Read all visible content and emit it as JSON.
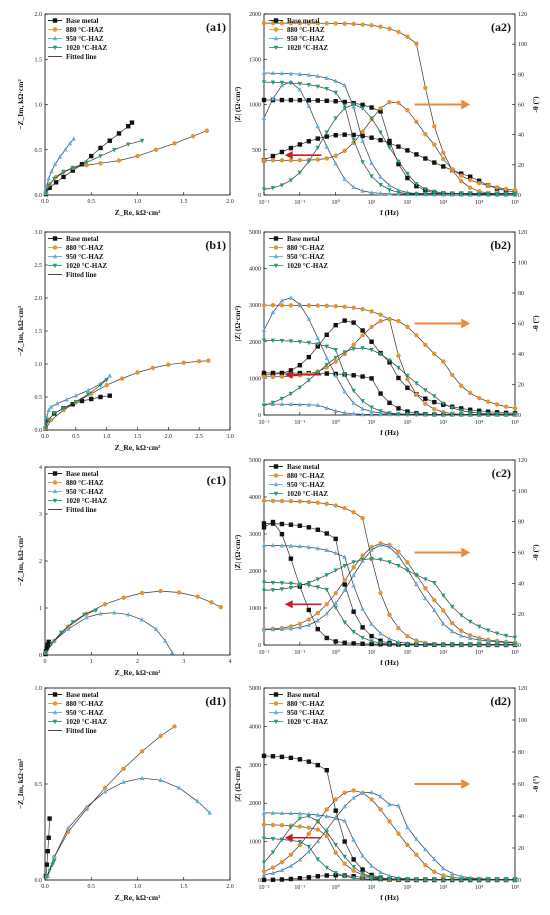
{
  "colors": {
    "Base metal": "#111111",
    "880 °C-HAZ": "#e8922c",
    "950 °C-HAZ": "#5ab0e0",
    "1020 °C-HAZ": "#18a07a",
    "fit": "#333333",
    "arrow_right": "#f0883a",
    "arrow_left": "#c81e1e"
  },
  "legend_labels": [
    "Base metal",
    "880 °C-HAZ",
    "950 °C-HAZ",
    "1020 °C-HAZ",
    "Fitted line"
  ],
  "chart_data": [
    {
      "id": "a1",
      "panel_label": "(a1)",
      "type": "scatter",
      "xlabel": "Z_Re, kΩ·cm²",
      "ylabel": "−Z_Im, kΩ·cm²",
      "xlim": [
        0,
        2.0
      ],
      "ylim": [
        0,
        2.0
      ],
      "xticks": [
        "0.0",
        "0.5",
        "1.0",
        "1.5",
        "2.0"
      ],
      "yticks": [
        "0.0",
        "0.5",
        "1.0",
        "1.5",
        "2.0"
      ],
      "legend": [
        "Base metal",
        "880 °C-HAZ",
        "950 °C-HAZ",
        "1020 °C-HAZ",
        "Fitted line"
      ],
      "series": [
        {
          "name": "Base metal",
          "x": [
            0.01,
            0.05,
            0.12,
            0.2,
            0.3,
            0.4,
            0.5,
            0.6,
            0.7,
            0.8,
            0.9,
            0.94
          ],
          "y": [
            0.01,
            0.08,
            0.14,
            0.2,
            0.27,
            0.34,
            0.43,
            0.52,
            0.6,
            0.68,
            0.76,
            0.8
          ]
        },
        {
          "name": "880 °C-HAZ",
          "x": [
            0.01,
            0.05,
            0.12,
            0.2,
            0.3,
            0.45,
            0.6,
            0.8,
            1.0,
            1.2,
            1.4,
            1.6,
            1.75
          ],
          "y": [
            0.02,
            0.12,
            0.2,
            0.26,
            0.3,
            0.33,
            0.35,
            0.38,
            0.43,
            0.5,
            0.57,
            0.65,
            0.71
          ]
        },
        {
          "name": "950 °C-HAZ",
          "x": [
            0.01,
            0.02,
            0.04,
            0.07,
            0.11,
            0.16,
            0.22,
            0.27,
            0.31
          ],
          "y": [
            0.02,
            0.1,
            0.18,
            0.26,
            0.34,
            0.42,
            0.5,
            0.57,
            0.62
          ]
        },
        {
          "name": "1020 °C-HAZ",
          "x": [
            0.01,
            0.04,
            0.1,
            0.2,
            0.3,
            0.45,
            0.6,
            0.75,
            0.9,
            1.05
          ],
          "y": [
            0.02,
            0.1,
            0.18,
            0.25,
            0.3,
            0.36,
            0.43,
            0.5,
            0.56,
            0.6
          ]
        }
      ]
    },
    {
      "id": "a2",
      "panel_label": "(a2)",
      "type": "line",
      "xlabel": "f (Hz)",
      "ylabel": "|Z| (Ω·cm²)",
      "ylabel_right": "-θ (°)",
      "xlog": [
        -2,
        5
      ],
      "ylim": [
        0,
        2000
      ],
      "ylim_right": [
        0,
        120
      ],
      "xticks": [
        "10⁻²",
        "10⁻¹",
        "10⁰",
        "10¹",
        "10²",
        "10³",
        "10⁴",
        "10⁵"
      ],
      "yticks": [
        "0",
        "500",
        "1000",
        "1500",
        "2000"
      ],
      "yticks_right": [
        "0",
        "20",
        "40",
        "60",
        "80",
        "100",
        "120"
      ],
      "legend": [
        "Base metal",
        "880 °C-HAZ",
        "950 °C-HAZ",
        "1020 °C-HAZ"
      ],
      "annotations": {
        "arrow_right": "pointing to right axis (phase)",
        "arrow_left": "pointing to left axis (|Z|)"
      },
      "mod": {
        "Base metal": [
          1050,
          0.8,
          1.3
        ],
        "880 °C-HAZ": [
          1900,
          0.6,
          2.3
        ],
        "950 °C-HAZ": [
          1350,
          0.7,
          0.4
        ],
        "1020 °C-HAZ": [
          1250,
          0.7,
          0.2
        ]
      },
      "phase": {
        "Base metal": [
          40,
          0.3,
          3.0,
          2.0,
          0
        ],
        "880 °C-HAZ": [
          62,
          1.6,
          1.0,
          23,
          0
        ],
        "950 °C-HAZ": [
          75,
          -1.3,
          1.1,
          3,
          0
        ],
        "1020 °C-HAZ": [
          60,
          0.5,
          1.2,
          3,
          0
        ]
      }
    },
    {
      "id": "b1",
      "panel_label": "(b1)",
      "type": "scatter",
      "xlabel": "Z_Re, kΩ·cm²",
      "ylabel": "−Z_Im, kΩ·cm²",
      "xlim": [
        0,
        3.0
      ],
      "ylim": [
        0,
        3.0
      ],
      "xticks": [
        "0.0",
        "0.5",
        "1.0",
        "1.5",
        "2.0",
        "2.5",
        "3.0"
      ],
      "yticks": [
        "0.0",
        "0.5",
        "1.0",
        "1.5",
        "2.0",
        "2.5",
        "3.0"
      ],
      "legend": [
        "Base metal",
        "880 °C-HAZ",
        "950 °C-HAZ",
        "1020 °C-HAZ",
        "Fitted line"
      ],
      "series": [
        {
          "name": "Base metal",
          "x": [
            0.01,
            0.05,
            0.15,
            0.3,
            0.45,
            0.6,
            0.75,
            0.9,
            1.05
          ],
          "y": [
            0.02,
            0.15,
            0.25,
            0.33,
            0.39,
            0.44,
            0.47,
            0.5,
            0.52
          ]
        },
        {
          "name": "880 °C-HAZ",
          "x": [
            0.01,
            0.1,
            0.3,
            0.5,
            0.75,
            1.0,
            1.25,
            1.5,
            1.75,
            2.0,
            2.25,
            2.5,
            2.65
          ],
          "y": [
            0.02,
            0.15,
            0.3,
            0.42,
            0.55,
            0.68,
            0.78,
            0.87,
            0.94,
            0.99,
            1.02,
            1.04,
            1.05
          ]
        },
        {
          "name": "950 °C-HAZ",
          "x": [
            0.01,
            0.03,
            0.06,
            0.1,
            0.2,
            0.35,
            0.5,
            0.7,
            0.9,
            1.05
          ],
          "y": [
            0.05,
            0.2,
            0.3,
            0.35,
            0.4,
            0.46,
            0.52,
            0.6,
            0.7,
            0.82
          ]
        },
        {
          "name": "1020 °C-HAZ",
          "x": [
            0.01,
            0.05,
            0.15,
            0.3,
            0.5,
            0.7,
            0.9,
            1.0
          ],
          "y": [
            0.03,
            0.15,
            0.25,
            0.33,
            0.43,
            0.54,
            0.68,
            0.76
          ]
        }
      ]
    },
    {
      "id": "b2",
      "panel_label": "(b2)",
      "type": "line",
      "xlabel": "f (Hz)",
      "ylabel": "|Z| (Ω·cm²)",
      "ylabel_right": "-θ (°)",
      "xlog": [
        -2,
        5
      ],
      "ylim": [
        0,
        5000
      ],
      "ylim_right": [
        0,
        120
      ],
      "xticks": [
        "10⁻²",
        "10⁻¹",
        "10⁰",
        "10¹",
        "10²",
        "10³",
        "10⁴",
        "10⁵"
      ],
      "yticks": [
        "0",
        "1000",
        "2000",
        "3000",
        "4000",
        "5000"
      ],
      "yticks_right": [
        "0",
        "20",
        "40",
        "60",
        "80",
        "100",
        "120"
      ],
      "legend": [
        "Base metal",
        "880 °C-HAZ",
        "950 °C-HAZ",
        "1020 °C-HAZ"
      ],
      "annotations": {
        "arrow_right": "pointing to right axis (phase)",
        "arrow_left": "pointing to left axis (|Z|)"
      },
      "mod": {
        "Base metal": [
          1150,
          0.8,
          1.0
        ],
        "880 °C-HAZ": [
          3000,
          0.7,
          1.5
        ],
        "950 °C-HAZ": [
          300,
          0.8,
          -0.4
        ],
        "1020 °C-HAZ": [
          2050,
          0.7,
          0.0
        ]
      },
      "phase": {
        "Base metal": [
          62,
          0.3,
          1.0,
          26,
          0
        ],
        "880 °C-HAZ": [
          63,
          1.5,
          1.3,
          25,
          0
        ],
        "950 °C-HAZ": [
          77,
          -1.3,
          1.2,
          3,
          0
        ],
        "1020 °C-HAZ": [
          44,
          0.7,
          1.7,
          3,
          0
        ]
      }
    },
    {
      "id": "c1",
      "panel_label": "(c1)",
      "type": "scatter",
      "xlabel": "Z_Re, kΩ·cm²",
      "ylabel": "−Z_Im, kΩ·cm²",
      "xlim": [
        0,
        4
      ],
      "ylim": [
        0,
        4
      ],
      "xticks": [
        "0",
        "1",
        "2",
        "3",
        "4"
      ],
      "yticks": [
        "0",
        "1",
        "2",
        "3",
        "4"
      ],
      "legend": [
        "Base metal",
        "880 °C-HAZ",
        "950 °C-HAZ",
        "1020 °C-HAZ",
        "Fitted line"
      ],
      "series": [
        {
          "name": "Base metal",
          "x": [
            0.01,
            0.02,
            0.04,
            0.06,
            0.08
          ],
          "y": [
            0.02,
            0.08,
            0.15,
            0.22,
            0.28
          ]
        },
        {
          "name": "880 °C-HAZ",
          "x": [
            0.02,
            0.2,
            0.5,
            0.9,
            1.3,
            1.7,
            2.1,
            2.5,
            2.9,
            3.3,
            3.6,
            3.8
          ],
          "y": [
            0.05,
            0.3,
            0.6,
            0.88,
            1.08,
            1.22,
            1.32,
            1.36,
            1.33,
            1.24,
            1.12,
            1.02
          ]
        },
        {
          "name": "950 °C-HAZ",
          "x": [
            0.02,
            0.2,
            0.5,
            0.9,
            1.2,
            1.5,
            1.8,
            2.1,
            2.4,
            2.6,
            2.75
          ],
          "y": [
            0.05,
            0.3,
            0.55,
            0.8,
            0.88,
            0.9,
            0.86,
            0.75,
            0.55,
            0.3,
            0.05
          ]
        },
        {
          "name": "1020 °C-HAZ",
          "x": [
            0.02,
            0.15,
            0.35,
            0.6,
            0.85,
            1.1
          ],
          "y": [
            0.05,
            0.25,
            0.48,
            0.7,
            0.86,
            0.95
          ]
        }
      ]
    },
    {
      "id": "c2",
      "panel_label": "(c2)",
      "type": "line",
      "xlabel": "f (Hz)",
      "ylabel": "|Z| (Ω·cm²)",
      "ylabel_right": "-θ (°)",
      "xlog": [
        -2,
        5
      ],
      "ylim": [
        0,
        5000
      ],
      "ylim_right": [
        0,
        120
      ],
      "xticks": [
        "10⁻²",
        "10⁻¹",
        "10⁰",
        "10¹",
        "10²",
        "10³",
        "10⁴",
        "10⁵"
      ],
      "yticks": [
        "0",
        "1000",
        "2000",
        "3000",
        "4000",
        "5000"
      ],
      "yticks_right": [
        "0",
        "20",
        "40",
        "60",
        "80",
        "100",
        "120"
      ],
      "legend": [
        "Base metal",
        "880 °C-HAZ",
        "950 °C-HAZ",
        "1020 °C-HAZ"
      ],
      "annotations": {
        "arrow_right": "pointing to right axis (phase)",
        "arrow_left": "pointing to left axis (|Z|)"
      },
      "mod": {
        "Base metal": [
          3300,
          0.85,
          0.0
        ],
        "880 °C-HAZ": [
          3900,
          0.7,
          0.8
        ],
        "950 °C-HAZ": [
          2700,
          0.7,
          0.3
        ],
        "1020 °C-HAZ": [
          1700,
          0.7,
          -0.2
        ]
      },
      "phase": {
        "Base metal": [
          80,
          -1.8,
          0.9,
          3,
          0
        ],
        "880 °C-HAZ": [
          66,
          1.3,
          1.4,
          10,
          0
        ],
        "950 °C-HAZ": [
          65,
          1.3,
          1.2,
          10,
          0
        ],
        "1020 °C-HAZ": [
          56,
          1.0,
          1.5,
          35,
          0
        ]
      }
    },
    {
      "id": "d1",
      "panel_label": "(d1)",
      "type": "scatter",
      "xlabel": "Z_Re, kΩ·cm²",
      "ylabel": "−Z_Im, kΩ·cm²",
      "xlim": [
        0,
        2.0
      ],
      "ylim": [
        0,
        1.0
      ],
      "xticks": [
        "0.0",
        "0.5",
        "1.0",
        "1.5",
        "2.0"
      ],
      "yticks": [
        "0.0",
        "0.5",
        "1.0"
      ],
      "legend": [
        "Base metal",
        "880 °C-HAZ",
        "950 °C-HAZ",
        "1020 °C-HAZ",
        "Fitted line"
      ],
      "series": [
        {
          "name": "Base metal",
          "x": [
            0.01,
            0.02,
            0.03,
            0.04,
            0.05
          ],
          "y": [
            0.02,
            0.08,
            0.15,
            0.22,
            0.32
          ]
        },
        {
          "name": "880 °C-HAZ",
          "x": [
            0.02,
            0.1,
            0.25,
            0.45,
            0.65,
            0.85,
            1.05,
            1.25,
            1.4
          ],
          "y": [
            0.02,
            0.12,
            0.25,
            0.37,
            0.48,
            0.58,
            0.67,
            0.75,
            0.8
          ]
        },
        {
          "name": "950 °C-HAZ",
          "x": [
            0.03,
            0.1,
            0.25,
            0.45,
            0.65,
            0.85,
            1.05,
            1.25,
            1.45,
            1.65,
            1.78
          ],
          "y": [
            0.02,
            0.12,
            0.27,
            0.38,
            0.46,
            0.51,
            0.53,
            0.52,
            0.48,
            0.41,
            0.35
          ]
        },
        {
          "name": "1020 °C-HAZ",
          "x": [
            0.02,
            0.05,
            0.08,
            0.1
          ],
          "y": [
            0.02,
            0.05,
            0.08,
            0.1
          ]
        }
      ]
    },
    {
      "id": "d2",
      "panel_label": "(d2)",
      "type": "line",
      "xlabel": "f (Hz)",
      "ylabel": "|Z| (Ω·cm²)",
      "ylabel_right": "-θ (°)",
      "xlog": [
        -2,
        5
      ],
      "ylim": [
        0,
        5000
      ],
      "ylim_right": [
        0,
        120
      ],
      "xticks": [
        "10⁻²",
        "10⁻¹",
        "10⁰",
        "10¹",
        "10²",
        "10³",
        "10⁴",
        "10⁵"
      ],
      "yticks": [
        "0",
        "1000",
        "2000",
        "3000",
        "4000",
        "5000"
      ],
      "yticks_right": [
        "0",
        "20",
        "40",
        "60",
        "80",
        "100",
        "120"
      ],
      "legend": [
        "Base metal",
        "880 °C-HAZ",
        "950 °C-HAZ",
        "1020 °C-HAZ"
      ],
      "annotations": {
        "arrow_right": "pointing to right axis (phase)",
        "arrow_left": "pointing to left axis (|Z|)"
      },
      "mod": {
        "Base metal": [
          3250,
          0.85,
          -0.2
        ],
        "880 °C-HAZ": [
          1450,
          0.7,
          -0.3
        ],
        "950 °C-HAZ": [
          1750,
          0.7,
          0.3
        ],
        "1020 °C-HAZ": [
          1100,
          0.7,
          -0.8
        ]
      },
      "phase": {
        "Base metal": [
          3,
          0,
          1,
          0,
          0
        ],
        "880 °C-HAZ": [
          56,
          0.5,
          1.5,
          2,
          0
        ],
        "950 °C-HAZ": [
          55,
          0.9,
          1.5,
          2,
          1
        ],
        "1020 °C-HAZ": [
          40,
          -0.8,
          1.0,
          2,
          0
        ]
      }
    }
  ]
}
